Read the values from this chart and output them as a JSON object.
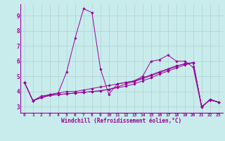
{
  "xlabel": "Windchill (Refroidissement éolien,°C)",
  "bg_color": "#c8ecec",
  "line_color": "#990099",
  "grid_color": "#b0d0d0",
  "xlim": [
    -0.5,
    23.5
  ],
  "ylim": [
    2.6,
    9.75
  ],
  "xticks": [
    0,
    1,
    2,
    3,
    4,
    5,
    6,
    7,
    8,
    9,
    10,
    11,
    12,
    13,
    14,
    15,
    16,
    17,
    18,
    19,
    20,
    21,
    22,
    23
  ],
  "yticks": [
    3,
    4,
    5,
    6,
    7,
    8,
    9
  ],
  "lines": [
    [
      4.6,
      3.4,
      3.7,
      3.8,
      3.9,
      5.3,
      7.5,
      9.45,
      9.2,
      5.5,
      3.82,
      4.5,
      4.6,
      4.7,
      5.0,
      6.0,
      6.1,
      6.4,
      6.0,
      6.0,
      5.6,
      2.95,
      3.5,
      3.3
    ],
    [
      4.6,
      3.4,
      3.6,
      3.8,
      3.9,
      4.0,
      4.0,
      4.1,
      4.2,
      4.3,
      4.4,
      4.5,
      4.6,
      4.7,
      4.9,
      5.1,
      5.3,
      5.5,
      5.7,
      5.8,
      5.9,
      3.0,
      3.45,
      3.3
    ],
    [
      4.6,
      3.4,
      3.6,
      3.75,
      3.8,
      3.85,
      3.9,
      3.95,
      4.0,
      4.05,
      4.15,
      4.25,
      4.35,
      4.5,
      4.7,
      4.9,
      5.15,
      5.35,
      5.55,
      5.75,
      5.9,
      3.0,
      3.45,
      3.3
    ],
    [
      4.6,
      3.4,
      3.6,
      3.75,
      3.8,
      3.85,
      3.9,
      3.95,
      4.0,
      4.05,
      4.15,
      4.3,
      4.5,
      4.65,
      4.85,
      5.05,
      5.25,
      5.45,
      5.65,
      5.85,
      5.9,
      3.0,
      3.45,
      3.3
    ]
  ],
  "xlabel_fontsize": 5.5,
  "xtick_fontsize": 4.5,
  "ytick_fontsize": 5.5
}
